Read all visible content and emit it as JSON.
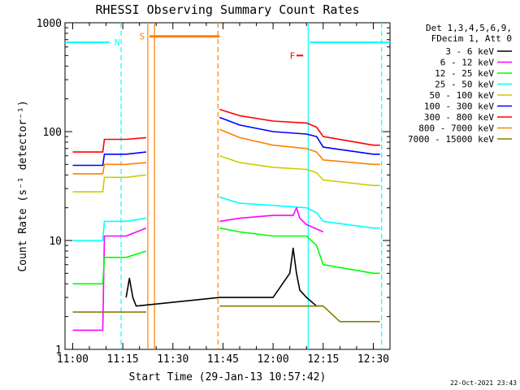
{
  "chart_data": {
    "type": "line",
    "title": "RHESSI Observing Summary Count Rates",
    "xlabel": "Start Time (29-Jan-13 10:57:42)",
    "ylabel": "Count Rate (s⁻¹ detector⁻¹)",
    "y_scale": "log",
    "ylim": [
      1,
      1000
    ],
    "xlim_minutes": [
      -2.3,
      95
    ],
    "x_ticks": [
      "11:00",
      "11:15",
      "11:30",
      "11:45",
      "12:00",
      "12:15",
      "12:30"
    ],
    "y_ticks": [
      "1",
      "10",
      "100",
      "1000"
    ],
    "legend_header": [
      "Det 1,3,4,5,6,9,",
      "FDecim 1, Att 0"
    ],
    "legend": [
      {
        "label": "3 - 6 keV",
        "color": "#000000"
      },
      {
        "label": "6 - 12 keV",
        "color": "#ff00ff"
      },
      {
        "label": "12 - 25 keV",
        "color": "#00ff00"
      },
      {
        "label": "25 - 50 keV",
        "color": "#00ffff"
      },
      {
        "label": "50 - 100 keV",
        "color": "#cccc00"
      },
      {
        "label": "100 - 300 keV",
        "color": "#0000ff"
      },
      {
        "label": "300 - 800 keV",
        "color": "#ff0000"
      },
      {
        "label": "800 - 7000 keV",
        "color": "#ff8000"
      },
      {
        "label": "7000 - 15000 keV",
        "color": "#808000"
      }
    ],
    "flags": [
      {
        "label": "N",
        "color": "#00ffff",
        "intervals": [
          [
            -2.3,
            11
          ],
          [
            71,
            95
          ]
        ],
        "level": 660,
        "text_at": 12.5
      },
      {
        "label": "S",
        "color": "#ff8000",
        "intervals": [
          [
            23,
            44
          ]
        ],
        "level": 750,
        "text_at": 20
      },
      {
        "label": "F",
        "color": "#ff0000",
        "intervals": [
          [
            67,
            69
          ]
        ],
        "level": 500,
        "text_at": 65
      }
    ],
    "boundaries": [
      {
        "at": 14.5,
        "color": "#00ffff",
        "style": "dashed"
      },
      {
        "at": 22.5,
        "color": "#ff8000",
        "style": "solid"
      },
      {
        "at": 24.5,
        "color": "#ff8000",
        "style": "solid"
      },
      {
        "at": 43.5,
        "color": "#ff8000",
        "style": "dashed"
      },
      {
        "at": 70.5,
        "color": "#00ffff",
        "style": "solid"
      },
      {
        "at": 92.5,
        "color": "#00ffff",
        "style": "dashed"
      }
    ],
    "series": [
      {
        "name": "300 - 800 keV",
        "color": "#ff0000",
        "x": [
          0,
          9,
          9.5,
          16,
          22,
          22.5,
          44,
          50,
          60,
          70,
          73,
          75,
          90,
          92
        ],
        "y": [
          65,
          65,
          85,
          85,
          88,
          null,
          160,
          140,
          125,
          120,
          110,
          90,
          75,
          75
        ]
      },
      {
        "name": "100 - 300 keV",
        "color": "#0000ff",
        "x": [
          0,
          9,
          9.5,
          16,
          22,
          22.5,
          44,
          50,
          60,
          70,
          73,
          75,
          90,
          92
        ],
        "y": [
          49,
          49,
          62,
          62,
          65,
          null,
          135,
          115,
          100,
          95,
          90,
          72,
          62,
          62
        ]
      },
      {
        "name": "800 - 7000 keV",
        "color": "#ff8000",
        "x": [
          0,
          9,
          9.5,
          16,
          22,
          22.5,
          44,
          50,
          60,
          70,
          73,
          75,
          90,
          92
        ],
        "y": [
          41,
          41,
          50,
          50,
          52,
          null,
          105,
          88,
          75,
          70,
          65,
          55,
          50,
          50
        ]
      },
      {
        "name": "50 - 100 keV",
        "color": "#cccc00",
        "x": [
          0,
          9,
          9.5,
          16,
          22,
          22.5,
          44,
          50,
          60,
          70,
          73,
          75,
          90,
          92
        ],
        "y": [
          28,
          28,
          38,
          38,
          40,
          null,
          60,
          52,
          47,
          45,
          42,
          36,
          32,
          32
        ]
      },
      {
        "name": "25 - 50 keV",
        "color": "#00ffff",
        "x": [
          0,
          9,
          9.5,
          16,
          22,
          22.5,
          44,
          50,
          60,
          70,
          73,
          75,
          90,
          92
        ],
        "y": [
          10,
          10,
          15,
          15,
          16,
          null,
          25,
          22,
          21,
          20,
          18,
          15,
          13,
          13
        ]
      },
      {
        "name": "6 - 12 keV",
        "color": "#ff00ff",
        "x": [
          0,
          9,
          9.5,
          16,
          22,
          22.5,
          44,
          50,
          60,
          66,
          67,
          68,
          70,
          75,
          80
        ],
        "y": [
          1.5,
          1.5,
          11,
          11,
          13,
          null,
          15,
          16,
          17,
          17,
          20,
          16,
          14,
          12,
          null
        ]
      },
      {
        "name": "12 - 25 keV",
        "color": "#00ff00",
        "x": [
          0,
          9,
          9.5,
          16,
          22,
          22.5,
          44,
          50,
          60,
          70,
          73,
          75,
          90,
          92
        ],
        "y": [
          4,
          4,
          7,
          7,
          8,
          null,
          13,
          12,
          11,
          11,
          9,
          6,
          5,
          5
        ]
      },
      {
        "name": "3 - 6 keV",
        "color": "#000000",
        "x": [
          16,
          17,
          18,
          19,
          44,
          60,
          65,
          66,
          67,
          68,
          70,
          73,
          75
        ],
        "y": [
          3,
          4.5,
          3,
          2.5,
          3,
          3,
          5,
          8.5,
          5,
          3.5,
          3,
          2.5,
          2.5
        ]
      },
      {
        "name": "7000 - 15000 keV",
        "color": "#808000",
        "x": [
          0,
          22,
          22.5,
          44,
          75,
          80,
          92
        ],
        "y": [
          2.2,
          2.2,
          null,
          2.5,
          2.5,
          1.8,
          1.8
        ]
      }
    ],
    "grid": false,
    "legend_position": "right"
  },
  "footer": {
    "date": "22-Oct-2021 23:43"
  }
}
